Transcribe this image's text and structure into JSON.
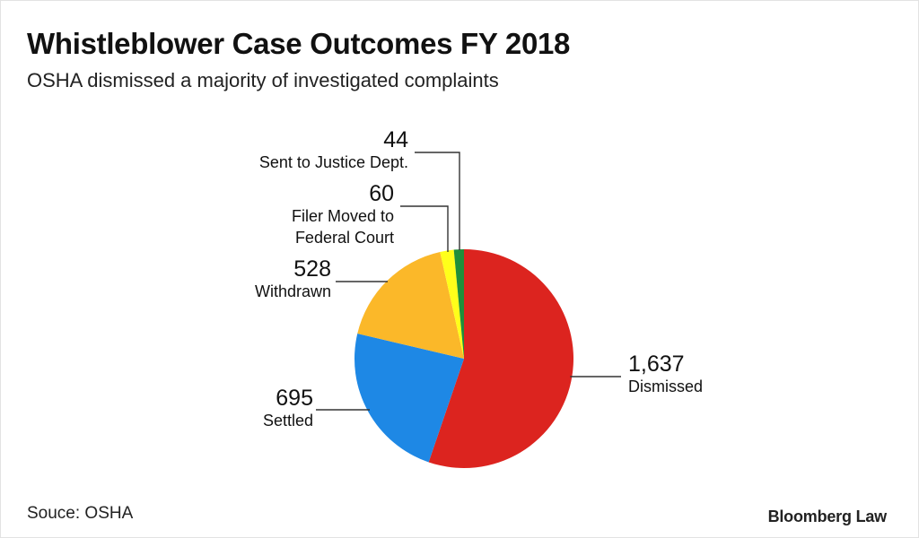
{
  "title": "Whistleblower Case Outcomes FY 2018",
  "subtitle": "OSHA dismissed a majority of investigated complaints",
  "source": "Souce: OSHA",
  "brand": "Bloomberg Law",
  "chart_data": {
    "type": "pie",
    "start_angle_deg": 0,
    "direction": "clockwise",
    "slices": [
      {
        "label": "Dismissed",
        "value": 1637,
        "value_label": "1,637",
        "color": "#dc241f"
      },
      {
        "label": "Settled",
        "value": 695,
        "value_label": "695",
        "color": "#1e88e5"
      },
      {
        "label": "Withdrawn",
        "value": 528,
        "value_label": "528",
        "color": "#fbb829"
      },
      {
        "label": "Filer Moved to Federal Court",
        "value": 60,
        "value_label": "60",
        "color": "#ffff1a"
      },
      {
        "label": "Sent to Justice Dept.",
        "value": 44,
        "value_label": "44",
        "color": "#1f8f3a"
      }
    ]
  }
}
